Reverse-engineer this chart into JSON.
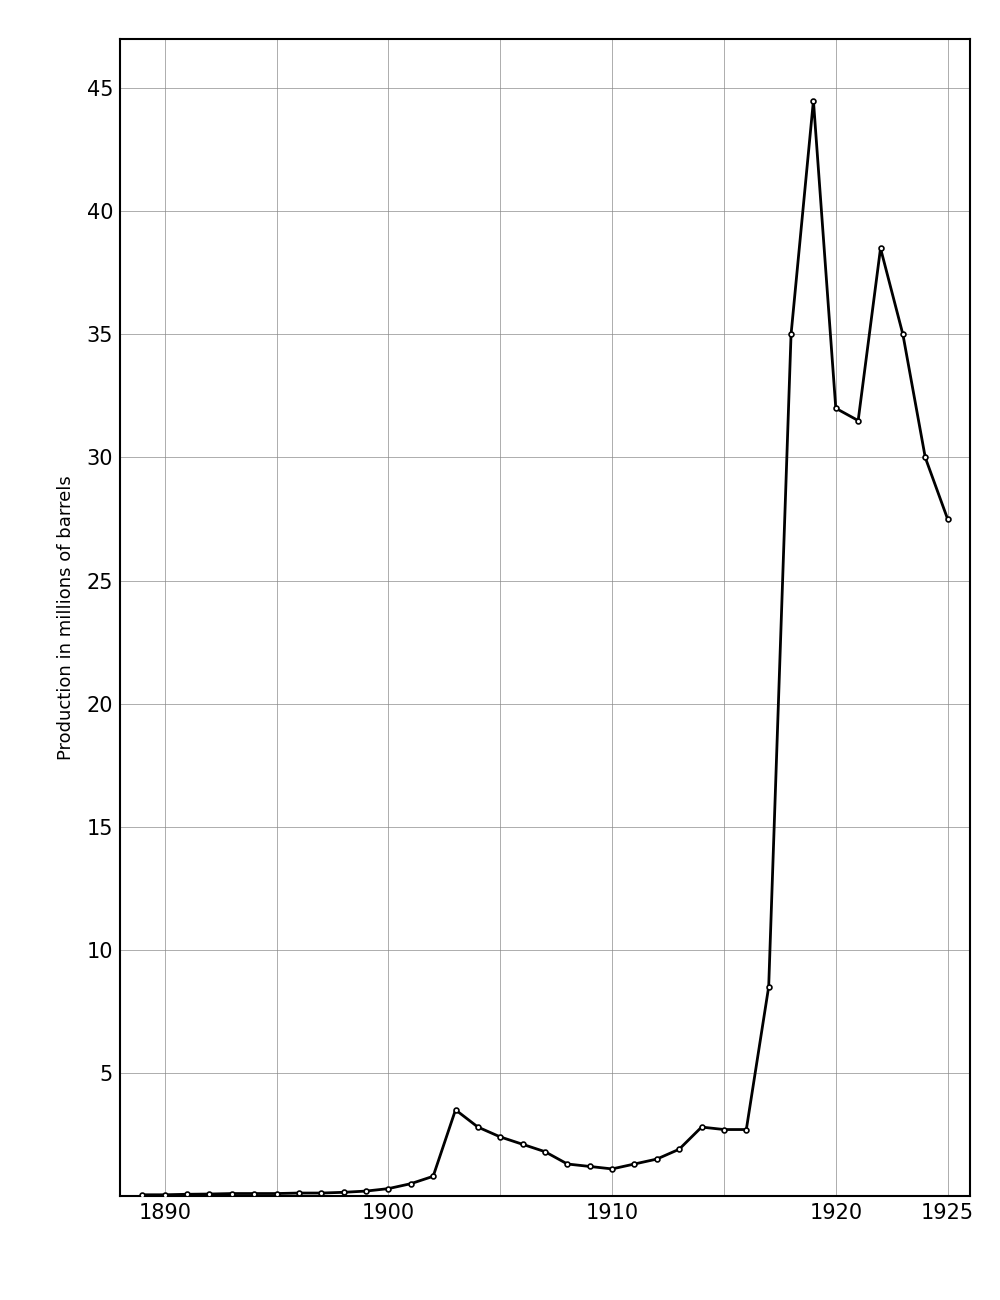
{
  "years": [
    1889,
    1890,
    1891,
    1892,
    1893,
    1894,
    1895,
    1896,
    1897,
    1898,
    1899,
    1900,
    1901,
    1902,
    1903,
    1904,
    1905,
    1906,
    1907,
    1908,
    1909,
    1910,
    1911,
    1912,
    1913,
    1914,
    1915,
    1916,
    1917,
    1918,
    1919,
    1920,
    1921,
    1922,
    1923,
    1924,
    1925
  ],
  "values": [
    0.05,
    0.05,
    0.07,
    0.08,
    0.1,
    0.1,
    0.1,
    0.12,
    0.12,
    0.15,
    0.2,
    0.3,
    0.5,
    0.8,
    3.5,
    2.8,
    2.4,
    2.1,
    1.8,
    1.3,
    1.2,
    1.1,
    1.3,
    1.5,
    1.9,
    2.8,
    2.7,
    2.7,
    8.5,
    35.0,
    44.5,
    32.0,
    31.5,
    38.5,
    35.0,
    30.0,
    27.5
  ],
  "xlim": [
    1888,
    1926
  ],
  "ylim": [
    0,
    47
  ],
  "yticks": [
    5,
    10,
    15,
    20,
    25,
    30,
    35,
    40,
    45
  ],
  "xticks_labeled": [
    1890,
    1900,
    1910,
    1920,
    1925
  ],
  "xticks_all": [
    1890,
    1895,
    1900,
    1905,
    1910,
    1915,
    1920,
    1925
  ],
  "ylabel": "Production in millions of barrels",
  "line_color": "#000000",
  "marker": "o",
  "marker_size": 3.5,
  "marker_facecolor": "white",
  "linewidth": 2.0,
  "background_color": "#ffffff",
  "grid_color": "#888888",
  "grid_linewidth": 0.6,
  "tick_fontsize": 15,
  "ylabel_fontsize": 13
}
